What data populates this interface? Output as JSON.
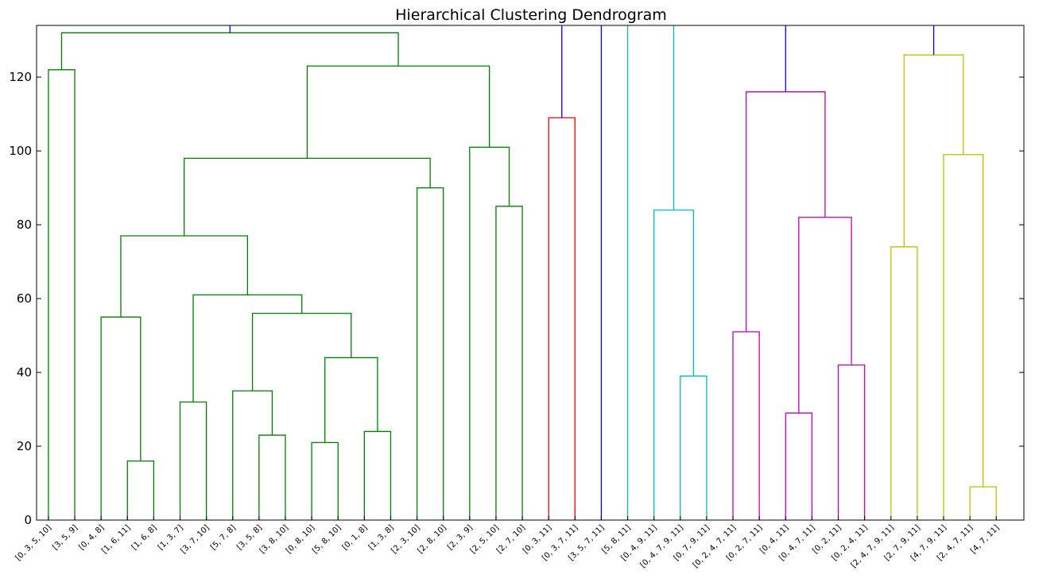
{
  "chart_data": {
    "type": "dendrogram",
    "title": "Hierarchical Clustering Dendrogram",
    "xlabel": "",
    "ylabel": "",
    "ylim": [
      0,
      134
    ],
    "yticks": [
      0,
      20,
      40,
      60,
      80,
      100,
      120
    ],
    "grid": false,
    "colors": {
      "green": "#008000",
      "red": "#ff0000",
      "cyan": "#00bfbf",
      "magenta": "#bf00bf",
      "yellow": "#bfbf00",
      "blue": "#0000ff"
    },
    "leaves": [
      "[0, 3, 5, 10]",
      "[3, 5, 9]",
      "[0, 4, 8]",
      "[1, 6, 11]",
      "[1, 6, 8]",
      "[1, 3, 7]",
      "[3, 7, 10]",
      "[5, 7, 8]",
      "[3, 5, 8]",
      "[3, 8, 10]",
      "[0, 8, 10]",
      "[5, 8, 10]",
      "[0, 1, 8]",
      "[1, 3, 8]",
      "[2, 3, 10]",
      "[2, 8, 10]",
      "[2, 3, 9]",
      "[2, 5, 10]",
      "[2, 7, 10]",
      "[0, 3, 11]",
      "[0, 3, 7, 11]",
      "[3, 5, 7, 11]",
      "[5, 8, 11]",
      "[0, 4, 9, 11]",
      "[0, 4, 7, 9, 11]",
      "[0, 7, 9, 11]",
      "[0, 2, 4, 7, 11]",
      "[0, 2, 7, 11]",
      "[0, 4, 11]",
      "[0, 4, 7, 11]",
      "[0, 2, 11]",
      "[0, 2, 4, 11]",
      "[2, 4, 7, 9, 11]",
      "[2, 7, 9, 11]",
      "[4, 7, 9, 11]",
      "[2, 4, 7, 11]",
      "[4, 7, 11]"
    ],
    "merges": [
      {
        "left": "L3",
        "right": "L4",
        "height": 16,
        "color": "green"
      },
      {
        "left": "L0",
        "right": "L1",
        "height": 122,
        "color": "green"
      },
      {
        "left": "L2",
        "right": "M0",
        "height": 55,
        "color": "green"
      },
      {
        "left": "L5",
        "right": "L6",
        "height": 32,
        "color": "green"
      },
      {
        "left": "L8",
        "right": "L9",
        "height": 23,
        "color": "green"
      },
      {
        "left": "L7",
        "right": "M4",
        "height": 35,
        "color": "green"
      },
      {
        "left": "L10",
        "right": "L11",
        "height": 21,
        "color": "green"
      },
      {
        "left": "L12",
        "right": "L13",
        "height": 24,
        "color": "green"
      },
      {
        "left": "M6",
        "right": "M7",
        "height": 44,
        "color": "green"
      },
      {
        "left": "M5",
        "right": "M8",
        "height": 56,
        "color": "green"
      },
      {
        "left": "M3",
        "right": "M9",
        "height": 61,
        "color": "green"
      },
      {
        "left": "M2",
        "right": "M10",
        "height": 77,
        "color": "green"
      },
      {
        "left": "L14",
        "right": "L15",
        "height": 90,
        "color": "green"
      },
      {
        "left": "M11",
        "right": "M12",
        "height": 98,
        "color": "green"
      },
      {
        "left": "L17",
        "right": "L18",
        "height": 85,
        "color": "green"
      },
      {
        "left": "L16",
        "right": "M14",
        "height": 101,
        "color": "green"
      },
      {
        "left": "M13",
        "right": "M15",
        "height": 123,
        "color": "green"
      },
      {
        "left": "M1",
        "right": "M16",
        "height": 132,
        "color": "green"
      },
      {
        "left": "L19",
        "right": "L20",
        "height": 109,
        "color": "red"
      },
      {
        "left": "L24",
        "right": "L25",
        "height": 39,
        "color": "cyan"
      },
      {
        "left": "L23",
        "right": "M19",
        "height": 84,
        "color": "cyan"
      },
      {
        "left": "L26",
        "right": "L27",
        "height": 51,
        "color": "magenta"
      },
      {
        "left": "L28",
        "right": "L29",
        "height": 29,
        "color": "magenta"
      },
      {
        "left": "L30",
        "right": "L31",
        "height": 42,
        "color": "magenta"
      },
      {
        "left": "M22",
        "right": "M23",
        "height": 82,
        "color": "magenta"
      },
      {
        "left": "M21",
        "right": "M24",
        "height": 116,
        "color": "magenta"
      },
      {
        "left": "L32",
        "right": "L33",
        "height": 74,
        "color": "yellow"
      },
      {
        "left": "L35",
        "right": "L36",
        "height": 9,
        "color": "yellow"
      },
      {
        "left": "L34",
        "right": "M27",
        "height": 99,
        "color": "yellow"
      },
      {
        "left": "M26",
        "right": "M28",
        "height": 126,
        "color": "yellow"
      }
    ],
    "top_links": [
      {
        "node": "M17",
        "color": "blue"
      },
      {
        "node": "M18",
        "color": "blue"
      },
      {
        "node": "L21",
        "color": "blue"
      },
      {
        "node": "L22",
        "color": "cyan"
      },
      {
        "node": "M20",
        "color": "cyan"
      },
      {
        "node": "M25",
        "color": "blue"
      },
      {
        "node": "M29",
        "color": "blue"
      }
    ]
  }
}
